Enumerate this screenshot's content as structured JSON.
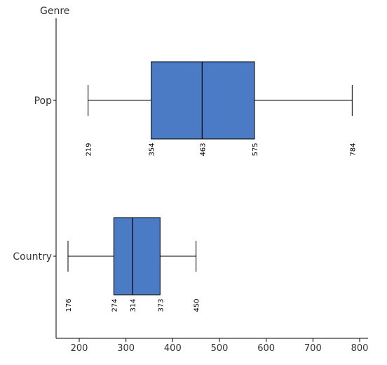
{
  "chart_data": {
    "type": "box",
    "orientation": "horizontal",
    "ylabel": "Genre",
    "xlabel": "",
    "xlim": [
      155,
      825
    ],
    "x_ticks": [
      200,
      300,
      400,
      500,
      600,
      700,
      800
    ],
    "x_tick_labels": [
      "200",
      "300",
      "400",
      "500",
      "600",
      "700",
      "800"
    ],
    "categories": [
      "Pop",
      "Country"
    ],
    "boxes": [
      {
        "category": "Pop",
        "min": 219,
        "q1": 354,
        "median": 463,
        "q3": 575,
        "max": 784,
        "labels": [
          "219",
          "354",
          "463",
          "575",
          "784"
        ]
      },
      {
        "category": "Country",
        "min": 176,
        "q1": 274,
        "median": 314,
        "q3": 373,
        "max": 450,
        "labels": [
          "176",
          "274",
          "314",
          "373",
          "450"
        ]
      }
    ],
    "box_color": "#4a7bc4",
    "line_color": "#000000",
    "grid": false
  }
}
